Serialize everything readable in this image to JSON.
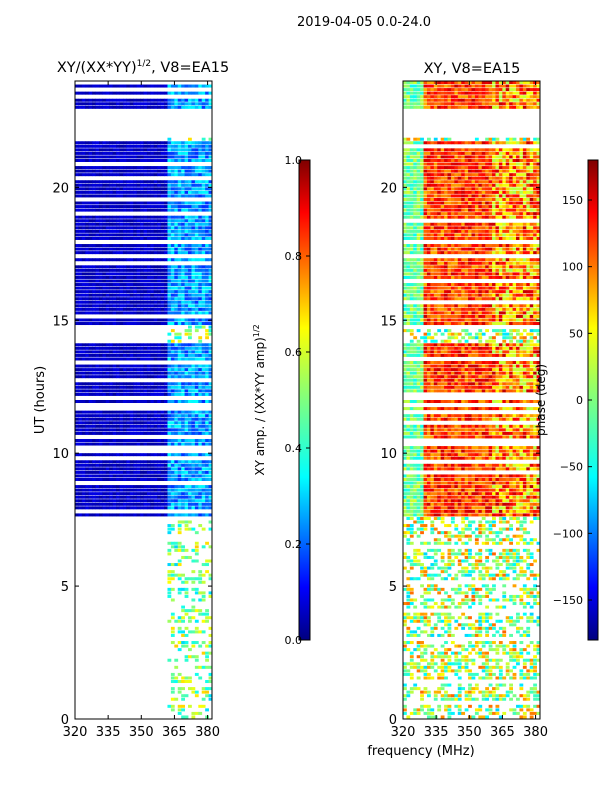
{
  "suptitle": "2019-04-05 0.0-24.0",
  "xlabel": "frequency (MHz)",
  "colors": {
    "jet": [
      "#00007f",
      "#0000ff",
      "#007fff",
      "#00ffff",
      "#7fff7f",
      "#ffff00",
      "#ff7f00",
      "#ff0000",
      "#7f0000"
    ],
    "axis": "#000000",
    "background": "#ffffff",
    "gap": "#ffffff"
  },
  "chart_data": [
    {
      "type": "heatmap",
      "title": "XY/(XX*YY)",
      "title_exponent": "1/2",
      "title_suffix": ", V8=EA15",
      "xlabel": "",
      "ylabel": "UT (hours)",
      "xlim": [
        320,
        382
      ],
      "ylim": [
        0,
        24
      ],
      "xticks": [
        320,
        335,
        350,
        365,
        380
      ],
      "yticks": [
        0,
        5,
        10,
        15,
        20
      ],
      "colorbar": {
        "label": "XY amp. / (XX*YY amp)",
        "label_exponent": "1/2",
        "range": [
          0.0,
          1.0
        ],
        "ticks": [
          "0.0",
          "0.2",
          "0.4",
          "0.6",
          "0.8",
          "1.0"
        ]
      }
    },
    {
      "type": "heatmap",
      "title": "XY, V8=EA15",
      "xlabel": "frequency (MHz)",
      "ylabel": "",
      "xlim": [
        320,
        382
      ],
      "ylim": [
        0,
        24
      ],
      "xticks": [
        320,
        335,
        350,
        365,
        380
      ],
      "yticks": [
        0,
        5,
        10,
        15,
        20
      ],
      "colorbar": {
        "label": "phase (deg)",
        "range": [
          -180,
          180
        ],
        "ticks": [
          "−150",
          "−100",
          "−50",
          "0",
          "50",
          "100",
          "150"
        ]
      }
    }
  ]
}
